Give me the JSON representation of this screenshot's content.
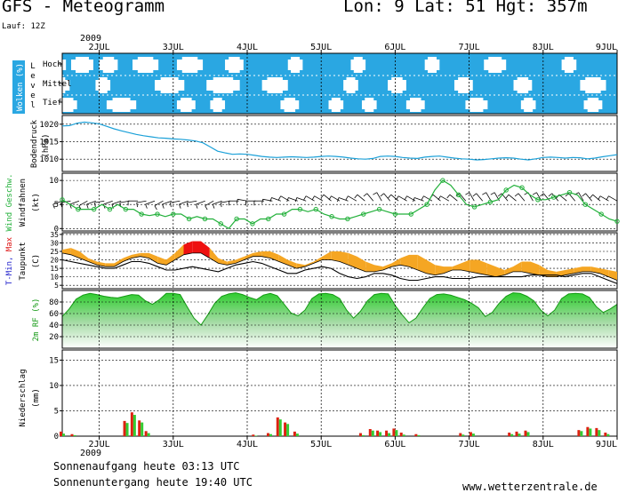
{
  "header": {
    "title": "GFS - Meteogramm",
    "coords": "Lon: 9 Lat: 51 Hgt: 357m",
    "run": "Lauf: 12Z"
  },
  "footer": {
    "sunrise": "Sonnenaufgang heute 03:13 UTC",
    "sunset": "Sonnenuntergang heute 19:40 UTC",
    "website": "www.wetterzentrale.de"
  },
  "colors": {
    "cloud_bg": "#2aa7e2",
    "pressure": "#1aa0d8",
    "wind": "#22b03a",
    "temp_warm": "#f5a623",
    "temp_hot": "#ee1111",
    "humidity": "#2ecc2e",
    "precip_red": "#dd2211",
    "precip_green": "#33cc33"
  },
  "chart_data": [
    {
      "type": "heatmap",
      "id": "clouds",
      "ylabel": "Wolken (%)",
      "level_label": "Level",
      "levels": [
        "Hoch",
        "Mittel",
        "Tief"
      ],
      "year": "2009",
      "days": [
        "2JUL",
        "3JUL",
        "4JUL",
        "5JUL",
        "6JUL",
        "7JUL",
        "8JUL",
        "9JUL"
      ],
      "clear_patches": [
        {
          "level": "Hoch",
          "x": [
            [
              1.3,
              1.55
            ],
            [
              1.62,
              1.92
            ],
            [
              2.0,
              2.25
            ],
            [
              2.45,
              2.8
            ],
            [
              3.05,
              3.4
            ],
            [
              3.7,
              3.95
            ],
            [
              4.55,
              4.75
            ],
            [
              5.4,
              5.6
            ],
            [
              6.4,
              6.6
            ],
            [
              7.2,
              7.5
            ],
            [
              8.25,
              8.45
            ]
          ]
        },
        {
          "level": "Mittel",
          "x": [
            [
              1.3,
              1.6
            ],
            [
              1.95,
              2.15
            ],
            [
              2.75,
              3.15
            ],
            [
              3.45,
              3.9
            ],
            [
              4.2,
              4.55
            ],
            [
              5.3,
              5.5
            ],
            [
              5.9,
              6.15
            ],
            [
              6.8,
              7.05
            ],
            [
              7.6,
              7.85
            ],
            [
              8.5,
              8.85
            ]
          ]
        },
        {
          "level": "Tief",
          "x": [
            [
              1.45,
              1.7
            ],
            [
              2.1,
              2.5
            ],
            [
              3.05,
              3.3
            ],
            [
              3.5,
              3.7
            ],
            [
              4.45,
              4.7
            ],
            [
              5.1,
              5.3
            ],
            [
              5.55,
              5.75
            ],
            [
              6.15,
              6.4
            ],
            [
              6.95,
              7.25
            ],
            [
              7.7,
              7.9
            ],
            [
              8.55,
              8.8
            ]
          ]
        }
      ]
    },
    {
      "type": "line",
      "id": "pressure",
      "ylabel": "Bodendruck",
      "unit": "(hPa)",
      "ylim": [
        1006.5,
        1022.5
      ],
      "yticks": [
        1010,
        1015,
        1020
      ],
      "series": [
        {
          "values": [
            1019.5,
            1019.6,
            1020.3,
            1020.6,
            1020.4,
            1020.1,
            1019.4,
            1018.7,
            1018.1,
            1017.6,
            1017.1,
            1016.7,
            1016.4,
            1016.1,
            1016.0,
            1015.8,
            1015.7,
            1015.5,
            1015.2,
            1014.7,
            1013.5,
            1012.3,
            1011.8,
            1011.4,
            1011.5,
            1011.4,
            1011.1,
            1010.8,
            1010.6,
            1010.5,
            1010.6,
            1010.7,
            1010.6,
            1010.5,
            1010.6,
            1010.8,
            1010.9,
            1010.8,
            1010.6,
            1010.3,
            1010.1,
            1010.0,
            1010.2,
            1010.8,
            1010.9,
            1010.8,
            1010.5,
            1010.3,
            1010.2,
            1010.6,
            1010.8,
            1010.9,
            1010.6,
            1010.3,
            1010.1,
            1010.0,
            1009.8,
            1009.9,
            1010.1,
            1010.3,
            1010.4,
            1010.3,
            1010.0,
            1009.8,
            1010.1,
            1010.5,
            1010.6,
            1010.5,
            1010.3,
            1010.5,
            1010.4,
            1010.1,
            1010.3,
            1010.7,
            1011.0,
            1011.3
          ]
        }
      ]
    },
    {
      "type": "line",
      "id": "wind",
      "ylabel": "Wind Geschw.",
      "ylabel2": "Windfahnen",
      "unit": "(kt)",
      "ylim": [
        -0.5,
        11.5
      ],
      "yticks": [
        0,
        5,
        10
      ],
      "series": [
        {
          "values": [
            6.0,
            5.0,
            4.0,
            4.0,
            4.0,
            5.0,
            4.0,
            5.0,
            4.0,
            4.0,
            3.0,
            2.7,
            3.0,
            2.5,
            3.0,
            3.0,
            2.0,
            2.5,
            2.0,
            2.0,
            1.0,
            0.0,
            2.0,
            2.0,
            1.0,
            2.0,
            2.0,
            3.0,
            3.0,
            4.0,
            4.0,
            3.5,
            4.0,
            3.0,
            2.5,
            2.0,
            2.0,
            2.5,
            3.0,
            3.5,
            4.0,
            3.5,
            3.0,
            3.0,
            3.0,
            4.0,
            5.0,
            8.0,
            10.0,
            9.0,
            7.0,
            5.0,
            4.5,
            5.0,
            5.5,
            6.0,
            8.0,
            9.0,
            8.5,
            7.0,
            6.0,
            6.0,
            6.5,
            7.0,
            7.5,
            7.0,
            5.0,
            4.0,
            3.0,
            2.0,
            1.5
          ]
        }
      ],
      "barb_directions": [
        250,
        260,
        250,
        240,
        250,
        260,
        250,
        250,
        260,
        270,
        260,
        250,
        240,
        250,
        260,
        250,
        260,
        250,
        240,
        250,
        260,
        270,
        280,
        270,
        270,
        280,
        290,
        300,
        290,
        290,
        300,
        300,
        310,
        300,
        290,
        300,
        310,
        320,
        330,
        320,
        310,
        300,
        300,
        290,
        300,
        310,
        300,
        310,
        320,
        330,
        320,
        330,
        330,
        320,
        310,
        320,
        330,
        330,
        320,
        320,
        310,
        320,
        330,
        320,
        310,
        300,
        300
      ]
    },
    {
      "type": "area",
      "id": "temperature",
      "ylabel": "T-Min, Max",
      "ylabel2": "Taupunkt",
      "unit": "(C)",
      "ylim": [
        3,
        36
      ],
      "yticks": [
        5,
        10,
        15,
        20,
        25,
        30,
        35
      ],
      "tmax": [
        26,
        27,
        25,
        21,
        19,
        18,
        18,
        21,
        23,
        24,
        24,
        22,
        20,
        24,
        29,
        31,
        31,
        27,
        21,
        19,
        20,
        22,
        24,
        25,
        25,
        23,
        20,
        18,
        17,
        19,
        22,
        25,
        25,
        24,
        22,
        19,
        17,
        16,
        18,
        21,
        23,
        23,
        20,
        17,
        16,
        16,
        18,
        20,
        20,
        18,
        16,
        14,
        16,
        19,
        19,
        17,
        14,
        13,
        14,
        15,
        16,
        16,
        15,
        14,
        13
      ],
      "tmin": [
        24,
        23,
        21,
        19,
        17,
        16,
        16,
        19,
        21,
        22,
        21,
        18,
        17,
        20,
        23,
        24,
        24,
        21,
        18,
        17,
        18,
        20,
        22,
        22,
        21,
        19,
        17,
        15,
        16,
        18,
        20,
        20,
        19,
        17,
        15,
        13,
        13,
        14,
        16,
        17,
        16,
        14,
        12,
        11,
        12,
        14,
        14,
        13,
        12,
        11,
        10,
        11,
        13,
        13,
        12,
        11,
        10,
        10,
        11,
        12,
        13,
        13,
        12,
        10,
        8
      ],
      "dewpoint": [
        20,
        19,
        18,
        17,
        16,
        15,
        15,
        17,
        19,
        19,
        18,
        16,
        14,
        14,
        15,
        16,
        15,
        14,
        13,
        15,
        17,
        18,
        19,
        18,
        16,
        14,
        12,
        12,
        14,
        15,
        16,
        15,
        12,
        10,
        9,
        10,
        12,
        12,
        11,
        9,
        8,
        8,
        9,
        10,
        10,
        9,
        9,
        9,
        10,
        10,
        10,
        10,
        10,
        10,
        11,
        11,
        11,
        11,
        10,
        11,
        12,
        12,
        10,
        8,
        6
      ]
    },
    {
      "type": "area",
      "id": "humidity",
      "ylabel": "2m RF (%)",
      "ylim": [
        0,
        100
      ],
      "yticks": [
        20,
        40,
        60,
        80
      ],
      "values": [
        55,
        68,
        85,
        92,
        95,
        93,
        90,
        88,
        87,
        90,
        93,
        92,
        82,
        76,
        84,
        95,
        95,
        93,
        72,
        52,
        40,
        58,
        78,
        90,
        94,
        96,
        93,
        88,
        84,
        92,
        95,
        91,
        76,
        61,
        56,
        66,
        86,
        94,
        95,
        93,
        86,
        66,
        52,
        64,
        82,
        93,
        95,
        94,
        74,
        58,
        44,
        52,
        70,
        86,
        93,
        94,
        92,
        88,
        84,
        78,
        70,
        55,
        62,
        78,
        90,
        96,
        95,
        90,
        82,
        66,
        56,
        66,
        86,
        94,
        95,
        94,
        88,
        72,
        62,
        68,
        76
      ]
    },
    {
      "type": "bar",
      "id": "precipitation",
      "ylabel": "Niederschlag",
      "unit": "(mm)",
      "ylim": [
        0,
        17
      ],
      "yticks": [
        0,
        5,
        10,
        15
      ],
      "year": "2009",
      "days": [
        "2JUL",
        "3JUL",
        "4JUL",
        "5JUL",
        "6JUL",
        "7JUL",
        "8JUL",
        "9JUL"
      ],
      "bars": [
        {
          "x": 1.5,
          "convective": 0.5,
          "total": 0.9
        },
        {
          "x": 1.65,
          "convective": 0.2,
          "total": 0.4
        },
        {
          "x": 2.36,
          "convective": 2.6,
          "total": 3.0
        },
        {
          "x": 2.46,
          "convective": 4.2,
          "total": 4.7
        },
        {
          "x": 2.56,
          "convective": 2.7,
          "total": 3.1
        },
        {
          "x": 2.65,
          "convective": 0.6,
          "total": 1.0
        },
        {
          "x": 4.1,
          "convective": 0.1,
          "total": 0.3
        },
        {
          "x": 4.3,
          "convective": 0.4,
          "total": 0.6
        },
        {
          "x": 4.43,
          "convective": 3.3,
          "total": 3.7
        },
        {
          "x": 4.53,
          "convective": 2.4,
          "total": 2.7
        },
        {
          "x": 4.66,
          "convective": 0.5,
          "total": 0.9
        },
        {
          "x": 5.55,
          "convective": 0.2,
          "total": 0.6
        },
        {
          "x": 5.68,
          "convective": 1.1,
          "total": 1.4
        },
        {
          "x": 5.78,
          "convective": 0.8,
          "total": 1.1
        },
        {
          "x": 5.9,
          "convective": 0.6,
          "total": 1.1
        },
        {
          "x": 6.0,
          "convective": 1.2,
          "total": 1.5
        },
        {
          "x": 6.1,
          "convective": 0.3,
          "total": 0.7
        },
        {
          "x": 6.3,
          "convective": 0.2,
          "total": 0.4
        },
        {
          "x": 6.9,
          "convective": 0.3,
          "total": 0.6
        },
        {
          "x": 7.04,
          "convective": 0.5,
          "total": 0.8
        },
        {
          "x": 7.56,
          "convective": 0.4,
          "total": 0.7
        },
        {
          "x": 7.66,
          "convective": 0.5,
          "total": 0.9
        },
        {
          "x": 7.78,
          "convective": 0.8,
          "total": 1.1
        },
        {
          "x": 8.5,
          "convective": 1.0,
          "total": 1.2
        },
        {
          "x": 8.62,
          "convective": 1.5,
          "total": 1.8
        },
        {
          "x": 8.74,
          "convective": 1.2,
          "total": 1.6
        },
        {
          "x": 8.86,
          "convective": 0.4,
          "total": 0.7
        }
      ]
    }
  ]
}
